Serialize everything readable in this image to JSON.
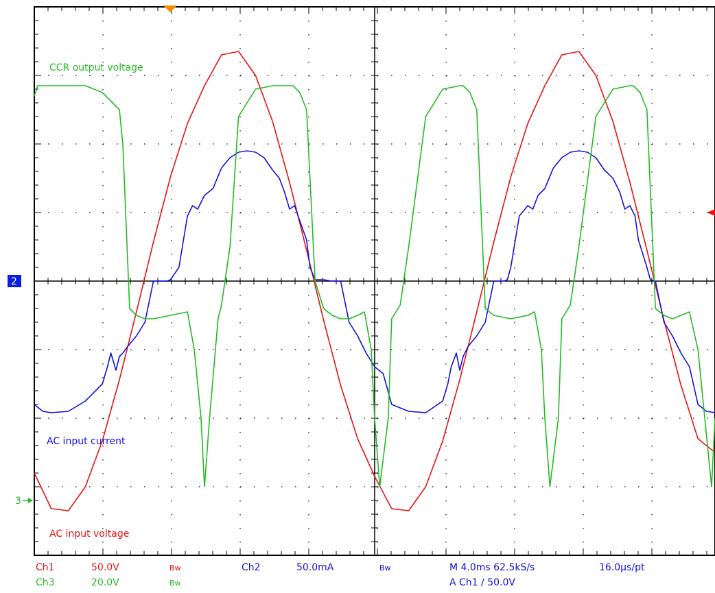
{
  "chart_data": {
    "type": "line",
    "xlim": [
      0,
      40
    ],
    "ylim": [
      -4,
      4
    ],
    "x_unit": "ms",
    "grid": true,
    "annotations": [
      {
        "text": "CCR output voltage",
        "color": "#22bb22"
      },
      {
        "text": "AC input current",
        "color": "#1010e0"
      },
      {
        "text": "AC input voltage",
        "color": "#ee1111"
      }
    ],
    "series": [
      {
        "channel": "Ch1",
        "color": "#ee1111",
        "x": [
          0,
          1,
          2,
          3,
          4,
          5,
          6,
          7,
          8,
          9,
          10,
          11,
          12,
          13,
          14,
          15,
          16,
          17,
          18,
          19,
          20,
          21,
          22,
          23,
          24,
          25,
          26,
          27,
          28,
          29,
          30,
          31,
          32,
          33,
          34,
          35,
          36,
          37,
          38,
          39,
          40
        ],
        "values": [
          -2.8,
          -3.32,
          -3.35,
          -3.0,
          -2.33,
          -1.44,
          -0.45,
          0.57,
          1.52,
          2.3,
          2.85,
          3.3,
          3.35,
          3.0,
          2.33,
          1.44,
          0.45,
          -0.57,
          -1.52,
          -2.3,
          -2.85,
          -3.32,
          -3.35,
          -3.0,
          -2.33,
          -1.44,
          -0.45,
          0.57,
          1.52,
          2.3,
          2.85,
          3.3,
          3.35,
          3.0,
          2.33,
          1.44,
          0.45,
          -0.57,
          -1.52,
          -2.3,
          -2.5
        ]
      },
      {
        "channel": "Ch2",
        "color": "#1010e0",
        "x": [
          0,
          0.5,
          1,
          2,
          3,
          4,
          4.3,
          4.5,
          4.8,
          5,
          5.2,
          5.5,
          6,
          6.5,
          7,
          7.3,
          7.6,
          7.8,
          8,
          8.5,
          9,
          9.3,
          9.6,
          10,
          10.5,
          11,
          11.5,
          12,
          12.5,
          13,
          13.5,
          14,
          14.4,
          14.7,
          15,
          15.3,
          15.5,
          16,
          16.2,
          16.5,
          17,
          17.5,
          18,
          18.5,
          19,
          19.5,
          20,
          20.5,
          21,
          22,
          23,
          24,
          24.3,
          24.5,
          24.8,
          25,
          25.2,
          25.5,
          26,
          26.5,
          27,
          27.3,
          27.6,
          27.8,
          28,
          28.5,
          29,
          29.3,
          29.6,
          30,
          30.5,
          31,
          31.5,
          32,
          32.5,
          33,
          33.5,
          34,
          34.4,
          34.7,
          35,
          35.3,
          35.5,
          36,
          36.2,
          36.5,
          37,
          37.5,
          38,
          38.5,
          39,
          39.5,
          40
        ],
        "values": [
          -1.8,
          -1.9,
          -1.92,
          -1.9,
          -1.75,
          -1.5,
          -1.25,
          -1.05,
          -1.3,
          -1.1,
          -1.05,
          -0.95,
          -0.8,
          -0.6,
          0,
          0,
          0,
          0,
          0.02,
          0.2,
          0.95,
          1.1,
          1.05,
          1.25,
          1.35,
          1.65,
          1.8,
          1.88,
          1.9,
          1.88,
          1.8,
          1.62,
          1.5,
          1.3,
          1.05,
          1.1,
          0.95,
          0.6,
          0.2,
          0.02,
          0.02,
          0,
          0,
          -0.6,
          -0.8,
          -1.05,
          -1.25,
          -1.35,
          -1.8,
          -1.9,
          -1.92,
          -1.75,
          -1.5,
          -1.25,
          -1.05,
          -1.3,
          -1.1,
          -0.95,
          -0.8,
          -0.6,
          0,
          0,
          0,
          0.02,
          0.2,
          0.95,
          1.1,
          1.05,
          1.25,
          1.35,
          1.65,
          1.8,
          1.88,
          1.9,
          1.88,
          1.8,
          1.62,
          1.5,
          1.3,
          1.05,
          1.1,
          0.95,
          0.6,
          0.2,
          0.02,
          0,
          -0.6,
          -0.8,
          -1.05,
          -1.25,
          -1.8,
          -1.9,
          -1.92
        ]
      },
      {
        "channel": "Ch3",
        "color": "#22bb22",
        "x": [
          0,
          0.2,
          0.5,
          1,
          2,
          3,
          4,
          5,
          5.2,
          5.6,
          6,
          6.5,
          7,
          8,
          9,
          9.4,
          9.8,
          10,
          10.3,
          10.8,
          11,
          11.5,
          12,
          13,
          14,
          15,
          15.2,
          15.6,
          16,
          16.5,
          17,
          17.5,
          18,
          18.5,
          19,
          19.4,
          19.8,
          20,
          20.3,
          20.8,
          21,
          21.5,
          22,
          23,
          24,
          25,
          25.2,
          25.6,
          26,
          26.5,
          27,
          28,
          29,
          29.4,
          29.8,
          30,
          30.3,
          30.8,
          31,
          31.5,
          32,
          33,
          34,
          35,
          35.2,
          35.6,
          36,
          36.5,
          37,
          37.5,
          38,
          38.5,
          39,
          39.4,
          39.8,
          40
        ],
        "values": [
          2.7,
          2.85,
          2.85,
          2.85,
          2.85,
          2.85,
          2.75,
          2.5,
          2.0,
          -0.4,
          -0.5,
          -0.55,
          -0.55,
          -0.5,
          -0.45,
          -1.0,
          -2.0,
          -3.0,
          -2.0,
          -0.55,
          -0.35,
          0.5,
          2.4,
          2.8,
          2.85,
          2.85,
          2.85,
          2.75,
          2.5,
          0.0,
          -0.4,
          -0.5,
          -0.55,
          -0.55,
          -0.5,
          -0.45,
          -1.0,
          -2.0,
          -3.0,
          -2.0,
          -0.55,
          -0.35,
          0.5,
          2.4,
          2.8,
          2.85,
          2.85,
          2.75,
          2.5,
          -0.4,
          -0.5,
          -0.55,
          -0.5,
          -0.45,
          -1.0,
          -2.0,
          -3.0,
          -2.0,
          -0.55,
          -0.35,
          0.5,
          2.4,
          2.8,
          2.85,
          2.85,
          2.75,
          2.5,
          -0.4,
          -0.5,
          -0.55,
          -0.5,
          -0.45,
          -1.0,
          -2.0,
          -3.0,
          -2.0
        ]
      }
    ],
    "markers": [
      {
        "text": "2",
        "level": 0,
        "color": "#0a1ee0"
      },
      {
        "text": "3",
        "level": -3.2,
        "color": "#22bb22"
      }
    ]
  },
  "readout": {
    "row1": [
      {
        "text": "Ch1",
        "color": "#ee1111"
      },
      {
        "text": "50.0V",
        "color": "#ee1111"
      },
      {
        "text": "Bw",
        "color": "#ee1111",
        "small": true
      },
      {
        "text": "Ch2",
        "color": "#1010e0"
      },
      {
        "text": "50.0mA",
        "color": "#1010e0"
      },
      {
        "text": "Bw",
        "color": "#1010e0",
        "small": true
      },
      {
        "text": "M 4.0ms 62.5kS/s",
        "color": "#1010e0"
      },
      {
        "text": "16.0µs/pt",
        "color": "#1010e0"
      }
    ],
    "row2": [
      {
        "text": "Ch3",
        "color": "#22bb22"
      },
      {
        "text": "20.0V",
        "color": "#22bb22"
      },
      {
        "text": "Bw",
        "color": "#22bb22",
        "small": true
      },
      {
        "text": "A  Ch1  ∕  50.0V",
        "color": "#1010e0"
      }
    ]
  }
}
